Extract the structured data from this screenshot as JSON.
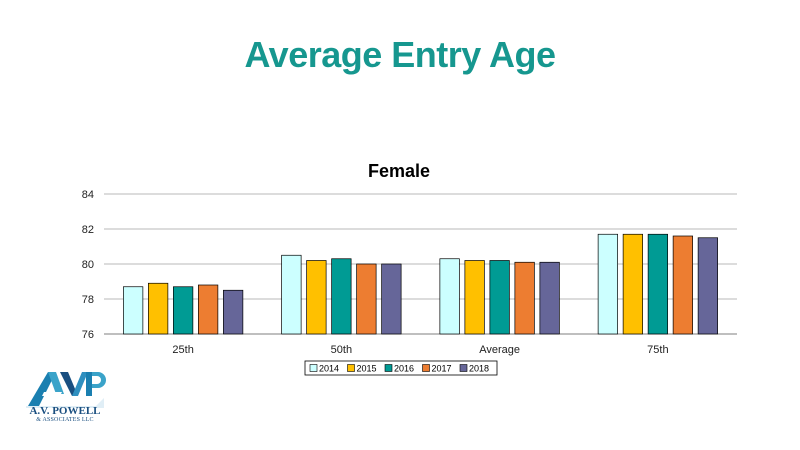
{
  "slide": {
    "title": "Average Entry Age"
  },
  "logo": {
    "name": "A.V. POWELL",
    "subtitle": "& ASSOCIATES LLC",
    "mark": "AVP"
  },
  "colors": {
    "title": "#16978f",
    "logo": "#1a4f80",
    "grid": "#b8b8b8",
    "axis": "#7f7f7f"
  },
  "chart_data": {
    "type": "bar",
    "title": "Female",
    "xlabel": "",
    "ylabel": "",
    "ylim": [
      76,
      84
    ],
    "yticks": [
      76,
      78,
      80,
      82,
      84
    ],
    "grid": true,
    "legend_position": "bottom",
    "categories": [
      "25th",
      "50th",
      "Average",
      "75th"
    ],
    "series": [
      {
        "name": "2014",
        "color": "#ccffff",
        "values": [
          78.7,
          80.5,
          80.3,
          81.7
        ]
      },
      {
        "name": "2015",
        "color": "#ffc000",
        "values": [
          78.9,
          80.2,
          80.2,
          81.7
        ]
      },
      {
        "name": "2016",
        "color": "#009b94",
        "values": [
          78.7,
          80.3,
          80.2,
          81.7
        ]
      },
      {
        "name": "2017",
        "color": "#ed7d31",
        "values": [
          78.8,
          80.0,
          80.1,
          81.6
        ]
      },
      {
        "name": "2018",
        "color": "#666699",
        "values": [
          78.5,
          80.0,
          80.1,
          81.5
        ]
      }
    ]
  }
}
